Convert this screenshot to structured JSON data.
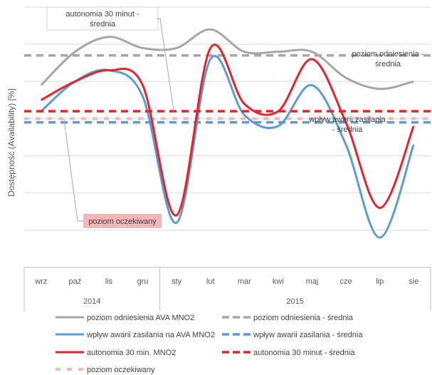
{
  "chart_data": {
    "type": "line",
    "categories": [
      "wrz",
      "paź",
      "lis",
      "gru",
      "sty",
      "lut",
      "mar",
      "kwi",
      "maj",
      "cze",
      "lip",
      "sie"
    ],
    "category_groups": [
      {
        "label": "2014",
        "span": 4
      },
      {
        "label": "2015",
        "span": 8
      }
    ],
    "ylabel": "Dostępność (Availability) [%]",
    "ylim": [
      0,
      7
    ],
    "y_tick_labels_shown": false,
    "grid": "horizontal",
    "legend_position": "bottom",
    "series": [
      {
        "name": "poziom odniesienia AVA MNO2",
        "color": "#a6a6a6",
        "style": "solid",
        "smooth": true,
        "values": [
          4.9,
          5.8,
          6.2,
          5.9,
          5.9,
          6.4,
          5.8,
          5.8,
          5.8,
          5.1,
          4.8,
          5.0
        ]
      },
      {
        "name": "poziom odniesienia - średnia",
        "color": "#a6a6a6",
        "style": "dashed",
        "values": [
          5.7,
          5.7,
          5.7,
          5.7,
          5.7,
          5.7,
          5.7,
          5.7,
          5.7,
          5.7,
          5.7,
          5.7
        ]
      },
      {
        "name": "wpływ awarii zasilania na AVA MNO2",
        "color": "#5b9bd5",
        "style": "solid",
        "smooth": true,
        "values": [
          4.2,
          5.0,
          5.3,
          4.6,
          1.2,
          5.6,
          4.1,
          3.8,
          4.9,
          3.3,
          0.8,
          3.3
        ]
      },
      {
        "name": "wpływ awarii zasilania - średnia",
        "color": "#5b9bd5",
        "style": "dashed",
        "values": [
          3.9,
          3.9,
          3.9,
          3.9,
          3.9,
          3.9,
          3.9,
          3.9,
          3.9,
          3.9,
          3.9,
          3.9
        ]
      },
      {
        "name": "autonomia 30 min. MNO2",
        "color": "#e8212a",
        "style": "solid",
        "smooth": true,
        "values": [
          4.5,
          5.0,
          5.3,
          4.9,
          1.4,
          5.9,
          4.4,
          4.2,
          5.6,
          3.9,
          1.6,
          3.8
        ]
      },
      {
        "name": "autonomia 30 minut - średnia",
        "color": "#e8212a",
        "style": "dashed",
        "values": [
          4.2,
          4.2,
          4.2,
          4.2,
          4.2,
          4.2,
          4.2,
          4.2,
          4.2,
          4.2,
          4.2,
          4.2
        ]
      },
      {
        "name": "poziom oczekiwany",
        "color": "#f4b6b6",
        "style": "dashed",
        "values": [
          4.0,
          4.0,
          4.0,
          4.0,
          4.0,
          4.0,
          4.0,
          4.0,
          4.0,
          4.0,
          4.0,
          4.0
        ]
      }
    ],
    "annotations": [
      {
        "text": "autonomia 30 minut - średnia",
        "lines": [
          "autonomia 30 minut -",
          "średnia"
        ],
        "target_series": "autonomia 30 minut - średnia",
        "style": "box"
      },
      {
        "text": "poziom odniesienia - średnia",
        "lines": [
          "poziom odniesienia -",
          "średnia"
        ],
        "target_series": "poziom odniesienia - średnia",
        "style": "plain"
      },
      {
        "text": "wpływ awarii zasilania - średnia",
        "lines": [
          "wpływ awarii zasilania",
          "- średnia"
        ],
        "target_series": "wpływ awarii zasilania - średnia",
        "style": "plain"
      },
      {
        "text": "poziom oczekiwany",
        "lines": [
          "poziom oczekiwany"
        ],
        "target_series": "poziom oczekiwany",
        "style": "highlight"
      }
    ]
  },
  "colors": {
    "grid": "#d9d9d9",
    "axis": "#bfbfbf",
    "highlight_fill": "#f4b6b6",
    "callout_border": "#d0d0d0"
  }
}
